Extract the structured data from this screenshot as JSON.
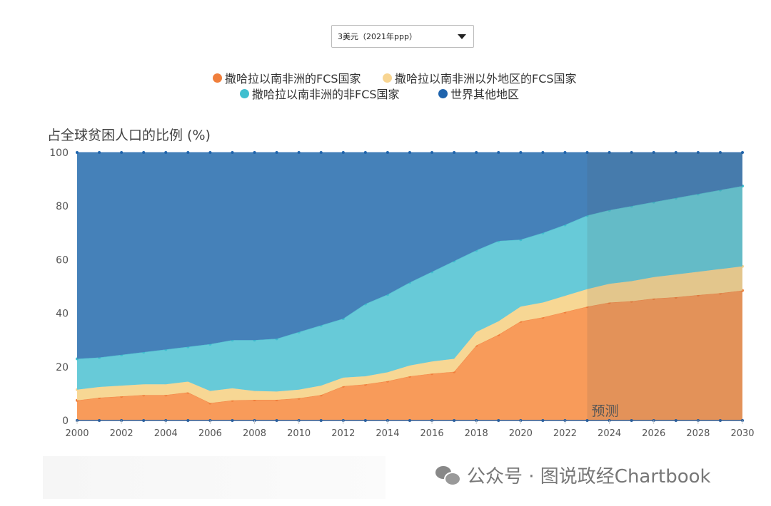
{
  "dropdown": {
    "selected": "3美元（2021年ppp）"
  },
  "watermark": "公众号 · 图说政经Chartbook",
  "chart_data": {
    "type": "area",
    "stacked": true,
    "title": "",
    "ylabel": "占全球贫困人口的比例 (%)",
    "xlabel": "",
    "ylim": [
      0,
      100
    ],
    "xlim": [
      2000,
      2030
    ],
    "yticks": [
      "0",
      "20",
      "40",
      "60",
      "80",
      "100"
    ],
    "xticks": [
      "2000",
      "2002",
      "2004",
      "2006",
      "2008",
      "2010",
      "2012",
      "2014",
      "2016",
      "2018",
      "2020",
      "2022",
      "2024",
      "2026",
      "2028",
      "2030"
    ],
    "legend_placement": "top-center",
    "forecast_start": 2023,
    "forecast_label": "预测",
    "x": [
      2000,
      2001,
      2002,
      2003,
      2004,
      2005,
      2006,
      2007,
      2008,
      2009,
      2010,
      2011,
      2012,
      2013,
      2014,
      2015,
      2016,
      2017,
      2018,
      2019,
      2020,
      2021,
      2022,
      2023,
      2024,
      2025,
      2026,
      2027,
      2028,
      2029,
      2030
    ],
    "series": [
      {
        "name": "撒哈拉以南非洲的FCS国家",
        "color": "#f89b5a",
        "values": [
          7.5,
          8.5,
          9,
          9.5,
          9.5,
          10.5,
          6.5,
          7.5,
          7.7,
          7.7,
          8.3,
          9.5,
          12.8,
          13.5,
          14.7,
          16.5,
          17.5,
          18.2,
          28,
          32,
          37,
          38.5,
          40.5,
          42.5,
          44,
          44.5,
          45.5,
          46,
          46.8,
          47.5,
          48.5
        ]
      },
      {
        "name": "撒哈拉以南非洲以外地区的FCS国家",
        "color": "#f7d794",
        "values": [
          4,
          4,
          4,
          4,
          4,
          4,
          4.5,
          4.5,
          3.3,
          3.1,
          3.2,
          3.5,
          3.2,
          3,
          3.3,
          4,
          4.5,
          4.8,
          5,
          5,
          5.5,
          5.5,
          6,
          6.5,
          7,
          7.5,
          8,
          8.5,
          8.7,
          9,
          9
        ]
      },
      {
        "name": "撒哈拉以南非洲的非FCS国家",
        "color": "#67cad8",
        "values": [
          11.5,
          11,
          11.5,
          12,
          13,
          13,
          17.5,
          18,
          19,
          19.7,
          21.5,
          22.5,
          22,
          27,
          29,
          31,
          33.5,
          36.5,
          30.5,
          30,
          25,
          26,
          26.5,
          27.5,
          27.5,
          28,
          28,
          28.5,
          29,
          29.5,
          30
        ]
      },
      {
        "name": "世界其他地区",
        "color": "#4581b9",
        "values": [
          77,
          76.5,
          75.5,
          74.5,
          73.5,
          72.5,
          71.5,
          70,
          70,
          69.5,
          67,
          64.5,
          62,
          56.5,
          53,
          48.5,
          44.5,
          40.5,
          36.5,
          33,
          32.5,
          30,
          27,
          23.5,
          21.5,
          20,
          18.5,
          17,
          15.5,
          14,
          12.5
        ]
      }
    ]
  },
  "legend_dot_colors": [
    "#f07f3c",
    "#f8d592",
    "#3fbfcf",
    "#1f64ad"
  ]
}
